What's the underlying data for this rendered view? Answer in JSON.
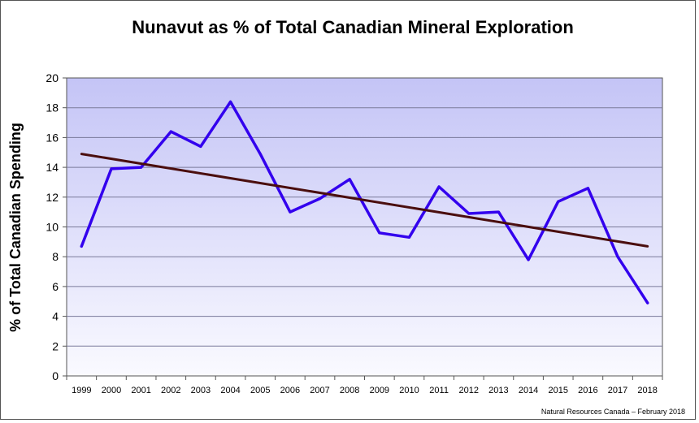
{
  "chart_data": {
    "type": "line",
    "title": "Nunavut as % of Total Canadian Mineral Exploration",
    "ylabel": "% of Total Canadian Spending",
    "xlabel": "",
    "source": "Natural Resources Canada – February 2018",
    "ylim": [
      0,
      20
    ],
    "yticks": [
      0,
      2,
      4,
      6,
      8,
      10,
      12,
      14,
      16,
      18,
      20
    ],
    "grid": true,
    "categories": [
      "1999",
      "2000",
      "2001",
      "2002",
      "2003",
      "2004",
      "2005",
      "2006",
      "2007",
      "2008",
      "2009",
      "2010",
      "2011",
      "2012",
      "2013",
      "2014",
      "2015",
      "2016",
      "2017",
      "2018"
    ],
    "series": [
      {
        "values": [
          8.7,
          13.9,
          14.0,
          16.4,
          15.4,
          18.4,
          14.9,
          11.0,
          11.9,
          13.2,
          9.6,
          9.3,
          12.7,
          10.9,
          11.0,
          7.8,
          11.7,
          12.6,
          8.0,
          4.9
        ],
        "color": "#3300ee"
      }
    ],
    "trendline": {
      "start": 14.9,
      "end": 8.7,
      "color": "#4a0e0e"
    }
  }
}
